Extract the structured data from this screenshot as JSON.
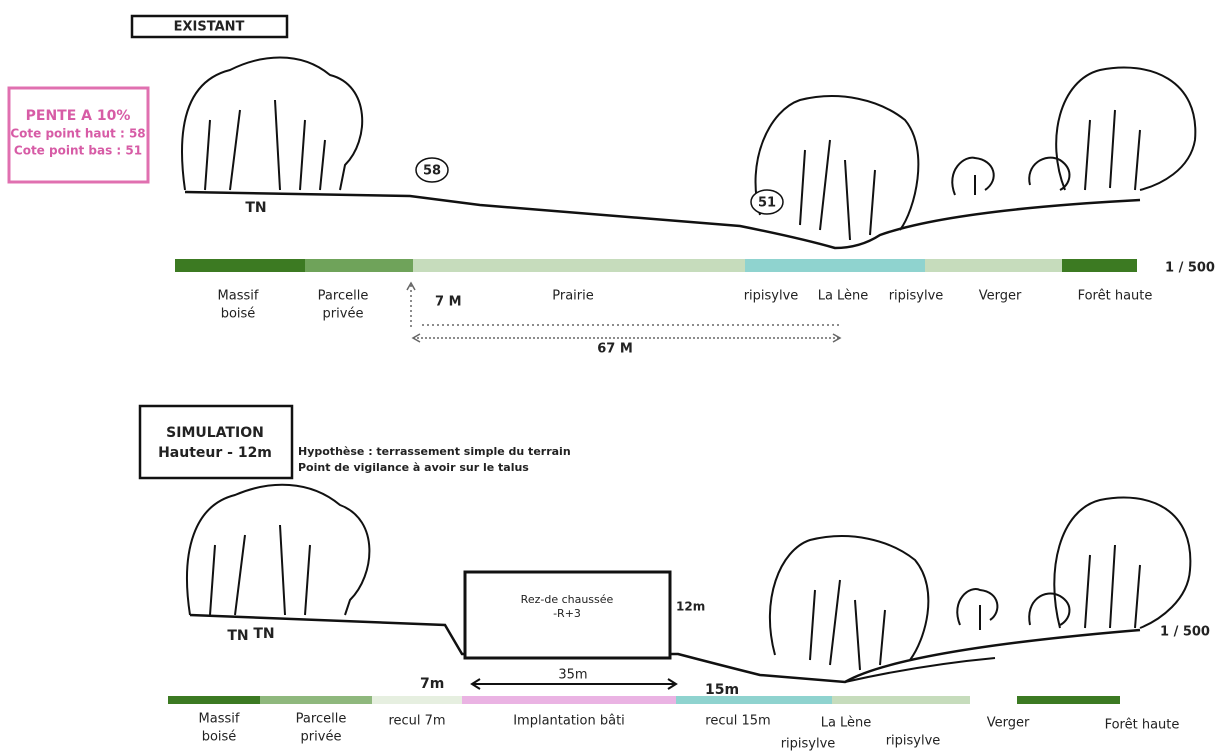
{
  "existing": {
    "title": "EXISTANT",
    "slope": {
      "title": "PENTE A 10%",
      "high": "Cote point haut : 58",
      "low": "Cote point bas : 51"
    },
    "markers": {
      "high": "58",
      "low": "51",
      "tn": "TN"
    },
    "scale": "1 / 500",
    "labels": [
      [
        "Massif",
        "boisé"
      ],
      [
        "Parcelle",
        "privée"
      ],
      [
        "Prairie"
      ],
      [
        "ripisylve"
      ],
      [
        "La Lène"
      ],
      [
        "ripisylve"
      ],
      [
        "Verger"
      ],
      [
        "Forêt haute"
      ]
    ],
    "dims": {
      "height": "7 M",
      "length": "67 M"
    }
  },
  "simulation": {
    "title": "SIMULATION",
    "subtitle": "Hauteur - 12m",
    "notes": [
      "Hypothèse : terrassement simple du terrain",
      "Point de vigilance à avoir sur le talus"
    ],
    "building": [
      "Rez-de chaussée",
      "-R+3"
    ],
    "building_height": "12m",
    "tn": [
      "TN",
      "TN"
    ],
    "dims": {
      "setback_left": "7m",
      "width": "35m",
      "setback_right": "15m"
    },
    "scale": "1 / 500",
    "labels": [
      [
        "Massif",
        "boisé"
      ],
      [
        "Parcelle",
        "privée"
      ],
      [
        "recul 7m"
      ],
      [
        "Implantation bâti"
      ],
      [
        "recul 15m"
      ],
      [
        "La Lène"
      ],
      [
        "ripisylve"
      ],
      [
        "ripisylve"
      ],
      [
        "Verger"
      ],
      [
        "Forêt haute"
      ]
    ]
  }
}
